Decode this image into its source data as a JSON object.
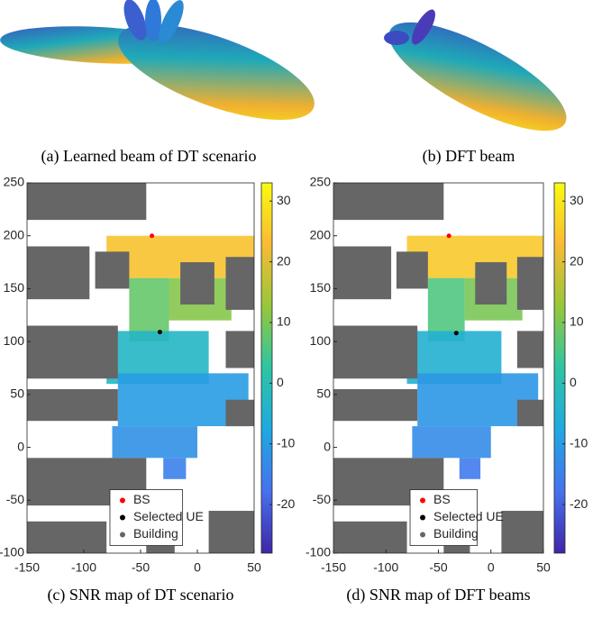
{
  "captions": {
    "a": "(a) Learned beam of DT scenario",
    "b": "(b) DFT beam"
  },
  "chart_data": [
    {
      "type": "map",
      "caption": "(c) SNR map of DT scenario",
      "xlim": [
        -150,
        50
      ],
      "ylim": [
        -100,
        250
      ],
      "xticks": [
        -150,
        -100,
        -50,
        0,
        50
      ],
      "yticks": [
        -100,
        -50,
        0,
        50,
        100,
        150,
        200,
        250
      ],
      "clim": [
        -28,
        33
      ],
      "cticks": [
        -20,
        -10,
        0,
        10,
        20,
        30
      ],
      "zones": [
        {
          "x": [
            -80,
            50
          ],
          "y": [
            160,
            200
          ],
          "snr": 24
        },
        {
          "x": [
            -60,
            -25
          ],
          "y": [
            100,
            160
          ],
          "snr": 8
        },
        {
          "x": [
            -25,
            30
          ],
          "y": [
            120,
            160
          ],
          "snr": 11
        },
        {
          "x": [
            -80,
            10
          ],
          "y": [
            60,
            110
          ],
          "snr": -3
        },
        {
          "x": [
            -70,
            45
          ],
          "y": [
            20,
            70
          ],
          "snr": -10
        },
        {
          "x": [
            -75,
            0
          ],
          "y": [
            -10,
            20
          ],
          "snr": -12
        },
        {
          "x": [
            -30,
            -10
          ],
          "y": [
            -30,
            -10
          ],
          "snr": -15
        }
      ],
      "series": [
        {
          "name": "BS",
          "color": "#ff0000",
          "x": [
            -40
          ],
          "y": [
            200
          ]
        },
        {
          "name": "Selected UE",
          "color": "#000000",
          "x": [
            -33
          ],
          "y": [
            109
          ]
        },
        {
          "name": "Building",
          "color": "#666666",
          "x": [
            [
              -150,
              -45
            ],
            [
              -150,
              -95
            ],
            [
              -90,
              -60
            ],
            [
              -15,
              15
            ],
            [
              25,
              50
            ],
            [
              -150,
              -70
            ],
            [
              -150,
              -70
            ],
            [
              25,
              50
            ],
            [
              25,
              50
            ],
            [
              -150,
              -45
            ],
            [
              -150,
              -80
            ],
            [
              -45,
              -20
            ],
            [
              10,
              50
            ]
          ],
          "y": [
            [
              215,
              250
            ],
            [
              140,
              190
            ],
            [
              150,
              185
            ],
            [
              135,
              175
            ],
            [
              130,
              180
            ],
            [
              65,
              115
            ],
            [
              25,
              55
            ],
            [
              75,
              110
            ],
            [
              20,
              45
            ],
            [
              -55,
              -10
            ],
            [
              -100,
              -70
            ],
            [
              -100,
              -70
            ],
            [
              -100,
              -60
            ]
          ]
        }
      ]
    },
    {
      "type": "map",
      "caption": "(d) SNR map of DFT beams",
      "xlim": [
        -150,
        50
      ],
      "ylim": [
        -100,
        250
      ],
      "xticks": [
        -150,
        -100,
        -50,
        0,
        50
      ],
      "yticks": [
        -100,
        -50,
        0,
        50,
        100,
        150,
        200,
        250
      ],
      "clim": [
        -28,
        33
      ],
      "cticks": [
        -20,
        -10,
        0,
        10,
        20,
        30
      ],
      "zones": [
        {
          "x": [
            -80,
            50
          ],
          "y": [
            160,
            200
          ],
          "snr": 25
        },
        {
          "x": [
            -60,
            -25
          ],
          "y": [
            100,
            160
          ],
          "snr": 6
        },
        {
          "x": [
            -25,
            30
          ],
          "y": [
            120,
            160
          ],
          "snr": 10
        },
        {
          "x": [
            -80,
            10
          ],
          "y": [
            60,
            110
          ],
          "snr": -5
        },
        {
          "x": [
            -70,
            45
          ],
          "y": [
            20,
            70
          ],
          "snr": -11
        },
        {
          "x": [
            -75,
            0
          ],
          "y": [
            -10,
            20
          ],
          "snr": -13
        },
        {
          "x": [
            -30,
            -10
          ],
          "y": [
            -30,
            -10
          ],
          "snr": -16
        }
      ],
      "series": [
        {
          "name": "BS",
          "color": "#ff0000",
          "x": [
            -40
          ],
          "y": [
            200
          ]
        },
        {
          "name": "Selected UE",
          "color": "#000000",
          "x": [
            -33
          ],
          "y": [
            108
          ]
        },
        {
          "name": "Building",
          "color": "#666666",
          "x": [
            [
              -150,
              -45
            ],
            [
              -150,
              -95
            ],
            [
              -90,
              -60
            ],
            [
              -15,
              15
            ],
            [
              25,
              50
            ],
            [
              -150,
              -70
            ],
            [
              -150,
              -70
            ],
            [
              25,
              50
            ],
            [
              25,
              50
            ],
            [
              -150,
              -45
            ],
            [
              -150,
              -80
            ],
            [
              -45,
              -20
            ],
            [
              10,
              50
            ]
          ],
          "y": [
            [
              215,
              250
            ],
            [
              140,
              190
            ],
            [
              150,
              185
            ],
            [
              135,
              175
            ],
            [
              130,
              180
            ],
            [
              65,
              115
            ],
            [
              25,
              55
            ],
            [
              75,
              110
            ],
            [
              20,
              45
            ],
            [
              -55,
              -10
            ],
            [
              -100,
              -70
            ],
            [
              -100,
              -70
            ],
            [
              -100,
              -60
            ]
          ]
        }
      ]
    }
  ]
}
